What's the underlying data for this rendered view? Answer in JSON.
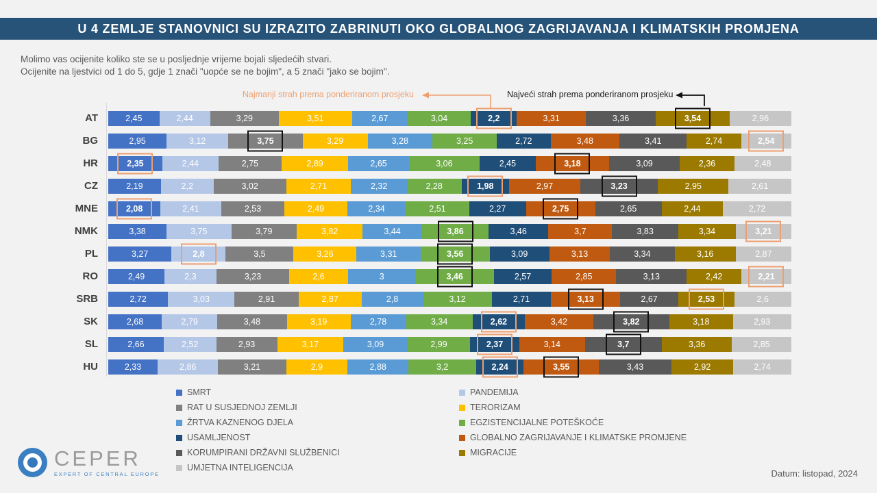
{
  "header": {
    "title": "U 4 ZEMLJE STANOVNICI SU IZRAZITO ZABRINUTI OKO GLOBALNOG ZAGRIJAVANJA I KLIMATSKIH PROMJENA",
    "bar_color": "#275379"
  },
  "intro": {
    "line1": "Molimo vas ocijenite koliko ste se u posljednje vrijeme bojali sljedećih stvari.",
    "line2": "Ocijenite na ljestvici od 1 do 5, gdje 1 znači \"uopće se ne bojim\", a 5 znači \"jako se bojim\"."
  },
  "annotations": {
    "min_label": "Najmanji strah prema ponderiranom prosjeku",
    "max_label": "Najveći strah prema ponderiranom prosjeku",
    "min_color": "#ED9F70",
    "max_color": "#1A1A1A"
  },
  "chart_data": {
    "type": "bar",
    "variant": "horizontal-100%-stacked",
    "value_format": "decimal-comma",
    "scale": {
      "min": 1,
      "max": 5,
      "min_meaning": "uopće se ne bojim",
      "max_meaning": "jako se bojim"
    },
    "categories": [
      "SMRT",
      "PANDEMIJA",
      "RAT U SUSJEDNOJ ZEMLJI",
      "TERORIZAM",
      "ŽRTVA KAZNENOG DJELA",
      "EGZISTENCIJALNE POTEŠKOĆE",
      "USAMLJENOST",
      "GLOBALNO ZAGRIJAVANJE I KLIMATSKE PROMJENE",
      "KORUMPIRANI DRŽAVNI SLUŽBENICI",
      "MIGRACIJE",
      "UMJETNA INTELIGENCIJA"
    ],
    "category_colors": [
      "#4472C4",
      "#B4C7E7",
      "#808080",
      "#FFC000",
      "#5B9BD5",
      "#70AD47",
      "#1F4E79",
      "#C05A11",
      "#595959",
      "#9C7A00",
      "#C6C6C6"
    ],
    "highlight": {
      "min_box_color": "#ED9F70",
      "max_box_color": "#111111"
    },
    "rows": [
      {
        "country": "AT",
        "values": [
          "2,45",
          "2,44",
          "3,29",
          "3,51",
          "2,67",
          "3,04",
          "2,2",
          "3,31",
          "3,36",
          "3,54",
          "2,96"
        ],
        "min_index": 6,
        "max_index": 9
      },
      {
        "country": "BG",
        "values": [
          "2,95",
          "3,12",
          "3,75",
          "3,29",
          "3,28",
          "3,25",
          "2,72",
          "3,48",
          "3,41",
          "2,74",
          "2,54"
        ],
        "min_index": 10,
        "max_index": 2
      },
      {
        "country": "HR",
        "values": [
          "2,35",
          "2,44",
          "2,75",
          "2,89",
          "2,65",
          "3,06",
          "2,45",
          "3,18",
          "3,09",
          "2,36",
          "2,48"
        ],
        "min_index": 0,
        "max_index": 7
      },
      {
        "country": "CZ",
        "values": [
          "2,19",
          "2,2",
          "3,02",
          "2,71",
          "2,32",
          "2,28",
          "1,98",
          "2,97",
          "3,23",
          "2,95",
          "2,61"
        ],
        "min_index": 6,
        "max_index": 8
      },
      {
        "country": "MNE",
        "values": [
          "2,08",
          "2,41",
          "2,53",
          "2,49",
          "2,34",
          "2,51",
          "2,27",
          "2,75",
          "2,65",
          "2,44",
          "2,72"
        ],
        "min_index": 0,
        "max_index": 7
      },
      {
        "country": "NMK",
        "values": [
          "3,38",
          "3,75",
          "3,79",
          "3,82",
          "3,44",
          "3,86",
          "3,46",
          "3,7",
          "3,83",
          "3,34",
          "3,21"
        ],
        "min_index": 10,
        "max_index": 5
      },
      {
        "country": "PL",
        "values": [
          "3,27",
          "2,8",
          "3,5",
          "3,26",
          "3,31",
          "3,56",
          "3,09",
          "3,13",
          "3,34",
          "3,16",
          "2,87"
        ],
        "min_index": 1,
        "max_index": 5
      },
      {
        "country": "RO",
        "values": [
          "2,49",
          "2,3",
          "3,23",
          "2,6",
          "3",
          "3,46",
          "2,57",
          "2,85",
          "3,13",
          "2,42",
          "2,21"
        ],
        "min_index": 10,
        "max_index": 5
      },
      {
        "country": "SRB",
        "values": [
          "2,72",
          "3,03",
          "2,91",
          "2,87",
          "2,8",
          "3,12",
          "2,71",
          "3,13",
          "2,67",
          "2,53",
          "2,6"
        ],
        "min_index": 9,
        "max_index": 7
      },
      {
        "country": "SK",
        "values": [
          "2,68",
          "2,79",
          "3,48",
          "3,19",
          "2,78",
          "3,34",
          "2,62",
          "3,42",
          "3,82",
          "3,18",
          "2,93"
        ],
        "min_index": 6,
        "max_index": 8
      },
      {
        "country": "SL",
        "values": [
          "2,66",
          "2,52",
          "2,93",
          "3,17",
          "3,09",
          "2,99",
          "2,37",
          "3,14",
          "3,7",
          "3,36",
          "2,85"
        ],
        "min_index": 6,
        "max_index": 8
      },
      {
        "country": "HU",
        "values": [
          "2,33",
          "2,86",
          "3,21",
          "2,9",
          "2,88",
          "3,2",
          "2,24",
          "3,55",
          "3,43",
          "2,92",
          "2,74"
        ],
        "min_index": 6,
        "max_index": 7
      }
    ]
  },
  "footer": {
    "logo_text": "CEPER",
    "logo_tagline": "EXPERT OF CENTRAL EUROPE",
    "date": "Datum: listopad, 2024"
  }
}
